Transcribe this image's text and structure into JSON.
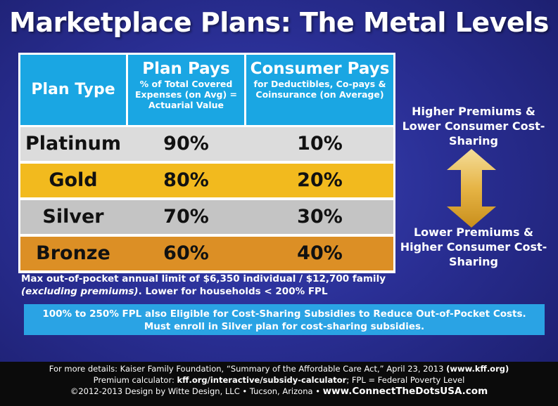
{
  "title": "Marketplace Plans: The Metal Levels",
  "table": {
    "headers": {
      "plan_type": "Plan Type",
      "plan_pays": "Plan Pays",
      "plan_pays_sub": "% of Total Covered Expenses (on Avg) = Actuarial Value",
      "consumer_pays": "Consumer Pays",
      "consumer_pays_sub": "for Deductibles, Co-pays & Coinsurance (on Average)"
    },
    "rows": [
      {
        "name": "Platinum",
        "plan": "90%",
        "consumer": "10%",
        "color": "#dcdcdc"
      },
      {
        "name": "Gold",
        "plan": "80%",
        "consumer": "20%",
        "color": "#f2ba1e"
      },
      {
        "name": "Silver",
        "plan": "70%",
        "consumer": "30%",
        "color": "#c4c4c4"
      },
      {
        "name": "Bronze",
        "plan": "60%",
        "consumer": "40%",
        "color": "#dc8f25"
      }
    ]
  },
  "side": {
    "top": "Higher Premiums & Lower Consumer Cost-Sharing",
    "bottom": "Lower Premiums & Higher Consumer Cost-Sharing",
    "arrow_icon": "double-arrow-icon"
  },
  "note": {
    "line1": "Max out-of-pocket annual limit of $6,350 individual / $12,700 family",
    "line2_italic": "(excluding premiums)",
    "line2_rest": ". Lower for households < 200% FPL"
  },
  "subsidy": {
    "line1": "100% to 250% FPL also Eligible for Cost-Sharing Subsidies to Reduce Out-of-Pocket Costs.",
    "line2": "Must enroll in Silver plan for cost-sharing subsidies."
  },
  "footer": {
    "details_prefix": "For more details: Kaiser Family Foundation, “Summary of the Affordable Care Act,” April 23, 2013 ",
    "details_link": "(www.kff.org)",
    "calc_prefix": "Premium calculator: ",
    "calc_link": "kff.org/interactive/subsidy-calculator",
    "calc_suffix": "; FPL = Federal Poverty Level",
    "copyright": "©2012-2013 Design by Witte Design, LLC • Tucson, Arizona  •  ",
    "website": "www.ConnectTheDotsUSA.com"
  },
  "colors": {
    "header": "#1aa6e3",
    "background": "#2a2f95",
    "subsidy": "#2aa3e4",
    "arrow_top": "#f4dd9a",
    "arrow_bottom": "#d49a1e"
  }
}
